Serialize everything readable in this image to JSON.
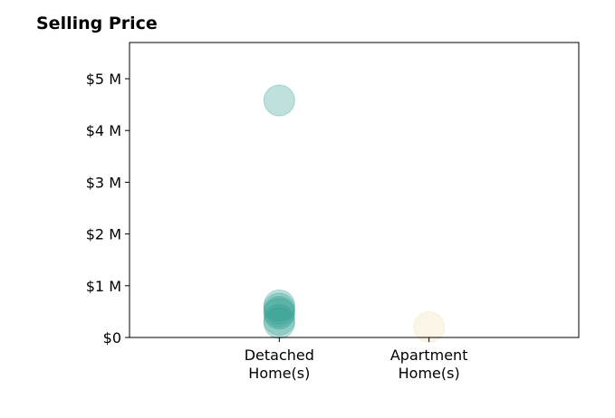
{
  "chart_data": {
    "type": "scatter",
    "title": "Selling Price",
    "xlabel": "",
    "ylabel": "",
    "categories": [
      "Detached\nHome(s)",
      "Apartment\nHome(s)"
    ],
    "category_slots": 3,
    "ylim": [
      0,
      5700000
    ],
    "yticks": [
      {
        "value": 0,
        "label": "$0"
      },
      {
        "value": 1000000,
        "label": "$1 M"
      },
      {
        "value": 2000000,
        "label": "$2 M"
      },
      {
        "value": 3000000,
        "label": "$3 M"
      },
      {
        "value": 4000000,
        "label": "$4 M"
      },
      {
        "value": 5000000,
        "label": "$5 M"
      }
    ],
    "grid": false,
    "series": [
      {
        "category": "Detached\nHome(s)",
        "color": "#2a9d8f",
        "values": [
          4580000,
          620000,
          560000,
          500000,
          460000,
          340000,
          280000
        ]
      },
      {
        "category": "Apartment\nHome(s)",
        "color": "#f2dfb0",
        "values": [
          200000
        ]
      }
    ]
  }
}
